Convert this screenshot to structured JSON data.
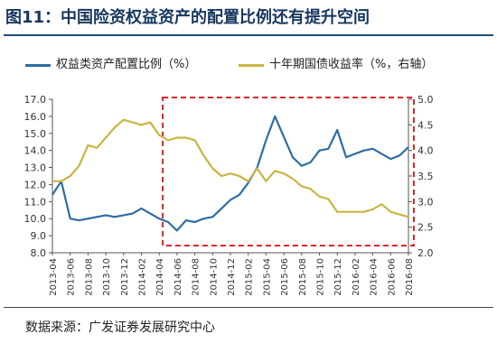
{
  "figure": {
    "title": "图11：中国险资权益资产的配置比例还有提升空间",
    "source": "数据来源：广发证券发展研究中心"
  },
  "chart_data": {
    "type": "line",
    "x": [
      "2013-04",
      "2013-05",
      "2013-06",
      "2013-07",
      "2013-08",
      "2013-09",
      "2013-10",
      "2013-11",
      "2013-12",
      "2014-01",
      "2014-02",
      "2014-03",
      "2014-04",
      "2014-05",
      "2014-06",
      "2014-07",
      "2014-08",
      "2014-09",
      "2014-10",
      "2014-11",
      "2014-12",
      "2015-01",
      "2015-02",
      "2015-03",
      "2015-04",
      "2015-05",
      "2015-06",
      "2015-07",
      "2015-08",
      "2015-09",
      "2015-10",
      "2015-11",
      "2015-12",
      "2016-01",
      "2016-02",
      "2016-03",
      "2016-04",
      "2016-05",
      "2016-06",
      "2016-07",
      "2016-08"
    ],
    "tick_labels": [
      "2013-04",
      "2013-06",
      "2013-08",
      "2013-10",
      "2013-12",
      "2014-02",
      "2014-04",
      "2014-06",
      "2014-08",
      "2014-10",
      "2014-12",
      "2015-02",
      "2015-04",
      "2015-06",
      "2015-08",
      "2015-10",
      "2015-12",
      "2016-02",
      "2016-04",
      "2016-06",
      "2016-08"
    ],
    "series": [
      {
        "name": "权益类资产配置比例（%）",
        "axis": "left",
        "color": "#2e6da4",
        "values": [
          11.4,
          12.2,
          10.0,
          9.9,
          10.0,
          10.1,
          10.2,
          10.1,
          10.2,
          10.3,
          10.6,
          10.3,
          10.0,
          9.8,
          9.3,
          9.9,
          9.8,
          10.0,
          10.1,
          10.6,
          11.1,
          11.4,
          12.1,
          13.0,
          14.6,
          16.0,
          14.8,
          13.6,
          13.1,
          13.3,
          14.0,
          14.1,
          15.2,
          13.6,
          13.8,
          14.0,
          14.1,
          13.8,
          13.5,
          13.7,
          14.2
        ]
      },
      {
        "name": "十年期国债收益率（%，右轴）",
        "axis": "right",
        "color": "#c8b543",
        "values": [
          3.4,
          3.4,
          3.5,
          3.7,
          4.1,
          4.05,
          4.25,
          4.45,
          4.6,
          4.55,
          4.5,
          4.55,
          4.3,
          4.2,
          4.25,
          4.25,
          4.2,
          3.9,
          3.65,
          3.5,
          3.55,
          3.5,
          3.4,
          3.65,
          3.4,
          3.6,
          3.55,
          3.45,
          3.3,
          3.25,
          3.1,
          3.05,
          2.8,
          2.8,
          2.8,
          2.8,
          2.85,
          2.95,
          2.8,
          2.75,
          2.7
        ]
      }
    ],
    "y_left": {
      "ylim": [
        8.0,
        17.0
      ],
      "ticks": [
        "8.0",
        "9.0",
        "10.0",
        "11.0",
        "12.0",
        "13.0",
        "14.0",
        "15.0",
        "16.0",
        "17.0"
      ]
    },
    "y_right": {
      "ylim": [
        2.0,
        5.0
      ],
      "ticks": [
        "2.0",
        "2.5",
        "3.0",
        "3.5",
        "4.0",
        "4.5",
        "5.0"
      ]
    },
    "highlight_range": [
      "2014-05",
      "2016-08"
    ],
    "highlight_color": "#e0262a",
    "grid": false,
    "legend_position": "top"
  }
}
